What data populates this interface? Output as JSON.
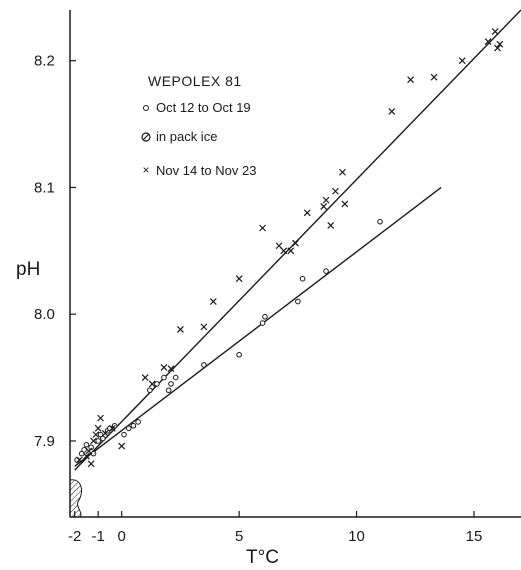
{
  "chart_data": {
    "type": "scatter",
    "title": "",
    "xlabel": "T°C",
    "ylabel": "pH",
    "xlim": [
      -2.2,
      17
    ],
    "ylim": [
      7.84,
      8.24
    ],
    "x_ticks": [
      -2,
      -1,
      0,
      5,
      10,
      15
    ],
    "x_tick_labels": [
      "-2",
      "-1",
      "0",
      "5",
      "10",
      "15"
    ],
    "y_ticks": [
      7.9,
      8.0,
      8.1,
      8.2
    ],
    "y_tick_labels": [
      "7.9",
      "8.0",
      "8.1",
      "8.2"
    ],
    "grid": false,
    "legend": {
      "placement": "top-left",
      "title": "WEPOLEX 81",
      "entries": [
        {
          "marker": "circle",
          "label": "Oct 12 to Oct 19"
        },
        {
          "marker": "hatched-circle",
          "label": "in pack ice"
        },
        {
          "marker": "x",
          "label": "Nov 14 to Nov 23"
        }
      ]
    },
    "series": [
      {
        "name": "Oct 12 to Oct 19",
        "marker": "circle",
        "points": [
          [
            -1.9,
            7.885
          ],
          [
            -1.7,
            7.89
          ],
          [
            -1.6,
            7.893
          ],
          [
            -1.5,
            7.897
          ],
          [
            -1.3,
            7.895
          ],
          [
            -1.2,
            7.89
          ],
          [
            -1.0,
            7.9
          ],
          [
            -0.9,
            7.905
          ],
          [
            -0.8,
            7.902
          ],
          [
            -0.6,
            7.908
          ],
          [
            -0.5,
            7.91
          ],
          [
            -0.3,
            7.912
          ],
          [
            0.1,
            7.905
          ],
          [
            0.3,
            7.91
          ],
          [
            0.5,
            7.912
          ],
          [
            0.7,
            7.915
          ],
          [
            1.2,
            7.94
          ],
          [
            1.5,
            7.945
          ],
          [
            1.8,
            7.95
          ],
          [
            2.0,
            7.94
          ],
          [
            2.1,
            7.945
          ],
          [
            2.3,
            7.95
          ],
          [
            3.5,
            7.96
          ],
          [
            5.0,
            7.968
          ],
          [
            6.0,
            7.993
          ],
          [
            6.1,
            7.998
          ],
          [
            7.5,
            8.01
          ],
          [
            7.7,
            8.028
          ],
          [
            8.7,
            8.034
          ],
          [
            11.0,
            8.073
          ]
        ]
      },
      {
        "name": "in pack ice",
        "marker": "hatched-circle",
        "points": [
          [
            -1.9,
            7.86
          ]
        ]
      },
      {
        "name": "Nov 14 to Nov 23",
        "marker": "x",
        "points": [
          [
            -1.8,
            7.885
          ],
          [
            -1.5,
            7.888
          ],
          [
            -1.4,
            7.892
          ],
          [
            -1.3,
            7.882
          ],
          [
            -1.2,
            7.9
          ],
          [
            -1.1,
            7.905
          ],
          [
            -1.0,
            7.91
          ],
          [
            -0.9,
            7.918
          ],
          [
            -0.7,
            7.906
          ],
          [
            -0.4,
            7.91
          ],
          [
            0.0,
            7.896
          ],
          [
            1.0,
            7.95
          ],
          [
            1.3,
            7.945
          ],
          [
            1.8,
            7.958
          ],
          [
            2.1,
            7.957
          ],
          [
            2.5,
            7.988
          ],
          [
            3.5,
            7.99
          ],
          [
            3.9,
            8.01
          ],
          [
            5.0,
            8.028
          ],
          [
            6.0,
            8.068
          ],
          [
            6.7,
            8.054
          ],
          [
            6.9,
            8.05
          ],
          [
            7.2,
            8.05
          ],
          [
            7.4,
            8.056
          ],
          [
            7.9,
            8.08
          ],
          [
            8.6,
            8.085
          ],
          [
            8.7,
            8.09
          ],
          [
            8.9,
            8.07
          ],
          [
            9.1,
            8.097
          ],
          [
            9.5,
            8.087
          ],
          [
            9.4,
            8.112
          ],
          [
            11.5,
            8.16
          ],
          [
            12.3,
            8.185
          ],
          [
            13.3,
            8.187
          ],
          [
            14.5,
            8.2
          ],
          [
            15.6,
            8.215
          ],
          [
            15.9,
            8.223
          ],
          [
            16.0,
            8.21
          ],
          [
            16.1,
            8.213
          ]
        ]
      }
    ],
    "fit_lines": [
      {
        "series": "Nov 14 to Nov 23",
        "from": [
          -2,
          7.877
        ],
        "to": [
          17,
          8.24
        ]
      },
      {
        "series": "Oct 12 to Oct 19",
        "from": [
          -2,
          7.88
        ],
        "to": [
          13.6,
          8.1
        ]
      }
    ]
  }
}
